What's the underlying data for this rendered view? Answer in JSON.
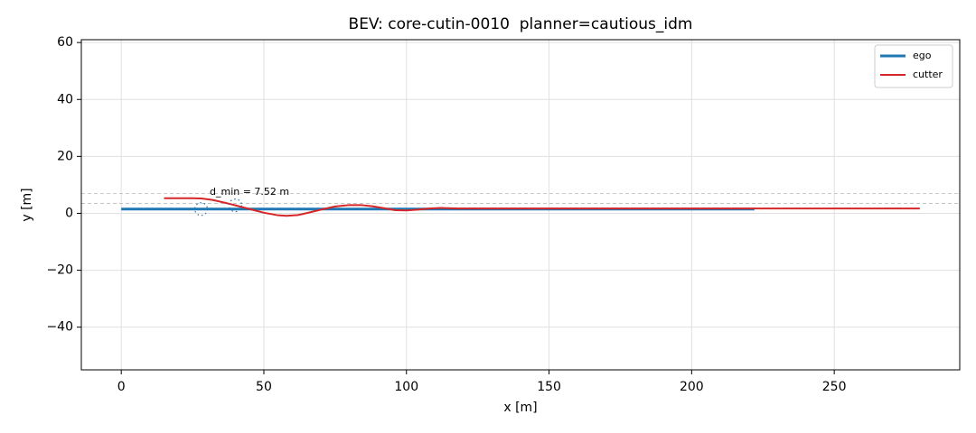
{
  "chart_data": {
    "type": "line",
    "title": "BEV: core-cutin-0010  planner=cautious_idm",
    "xlabel": "x [m]",
    "ylabel": "y [m]",
    "xlim": [
      -14,
      294
    ],
    "ylim": [
      -55,
      61
    ],
    "xticks": [
      0,
      50,
      100,
      150,
      200,
      250
    ],
    "yticks": [
      {
        "value": -40,
        "label": "−40"
      },
      {
        "value": -20,
        "label": "−20"
      },
      0,
      20,
      40,
      60
    ],
    "grid": true,
    "legend": "upper right",
    "lane_lines": [
      7,
      3.5
    ],
    "series": [
      {
        "name": "ego",
        "color": "#1f77b4",
        "x": [
          0,
          222
        ],
        "values": [
          1.5,
          1.5
        ]
      },
      {
        "name": "cutter",
        "color": "#d62728",
        "x": [
          15,
          20,
          25,
          28,
          32,
          36,
          40,
          45,
          50,
          55,
          58,
          62,
          66,
          70,
          75,
          80,
          84,
          88,
          92,
          96,
          100,
          104,
          108,
          112,
          118,
          130,
          160,
          200,
          240,
          280
        ],
        "values": [
          5.3,
          5.3,
          5.3,
          5.2,
          4.7,
          3.8,
          2.8,
          1.5,
          0.2,
          -0.7,
          -0.9,
          -0.6,
          0.3,
          1.3,
          2.4,
          2.9,
          2.9,
          2.5,
          1.8,
          1.1,
          1.0,
          1.3,
          1.7,
          1.9,
          1.7,
          1.7,
          1.7,
          1.7,
          1.7,
          1.7
        ]
      }
    ],
    "markers": [
      {
        "x": 28,
        "y": 1.5
      },
      {
        "x": 40,
        "y": 2.8
      }
    ],
    "annotation": {
      "text": "d_min = 7.52 m",
      "x": 31,
      "y": 7.5
    }
  }
}
